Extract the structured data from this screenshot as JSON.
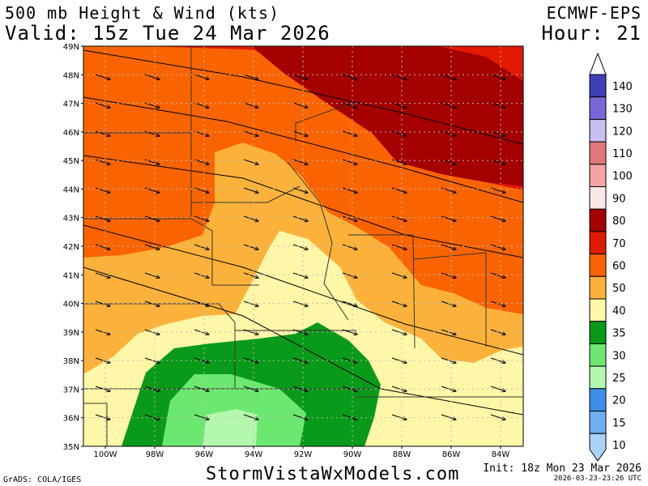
{
  "header": {
    "title": "500 mb Height & Wind (kts)",
    "valid": "Valid: 15z Tue 24 Mar 2026",
    "model": "ECMWF-EPS",
    "hour": "Hour: 21"
  },
  "footer": {
    "grads": "GrADS: COLA/IGES",
    "brand": "StormVistaWxModels.com",
    "init": "Init: 18z Mon 23 Mar 2026",
    "generated": "2026-03-23-23:26 UTC"
  },
  "map": {
    "lat_labels": [
      "49N",
      "48N",
      "47N",
      "46N",
      "45N",
      "44N",
      "43N",
      "42N",
      "41N",
      "40N",
      "39N",
      "38N",
      "37N",
      "36N",
      "35N"
    ],
    "lon_labels": [
      "100W",
      "98W",
      "96W",
      "94W",
      "92W",
      "90W",
      "88W",
      "86W",
      "84W"
    ],
    "region": "Upper Midwest / Central US"
  },
  "colorbar": {
    "levels": [
      "140",
      "130",
      "120",
      "110",
      "100",
      "90",
      "80",
      "70",
      "60",
      "50",
      "40",
      "35",
      "30",
      "25",
      "20",
      "15",
      "10"
    ],
    "colors": [
      "#3f3fb8",
      "#7b68d6",
      "#c8bef0",
      "#e07878",
      "#f4a4a4",
      "#fde6e6",
      "#a50000",
      "#e21a00",
      "#fa6400",
      "#fcb23a",
      "#fff7a8",
      "#0a9a19",
      "#6ce870",
      "#b4f7ae",
      "#3a90e8",
      "#6cb0f0",
      "#a8d2f8"
    ]
  },
  "colors": {
    "wind_10_20": "#b4f7ae",
    "wind_25": "#6ce870",
    "wind_30": "#0a9a19",
    "wind_35": "#fff7a8",
    "wind_40": "#fcb23a",
    "wind_50": "#fa6400",
    "wind_60": "#e21a00",
    "wind_70": "#a50000"
  }
}
